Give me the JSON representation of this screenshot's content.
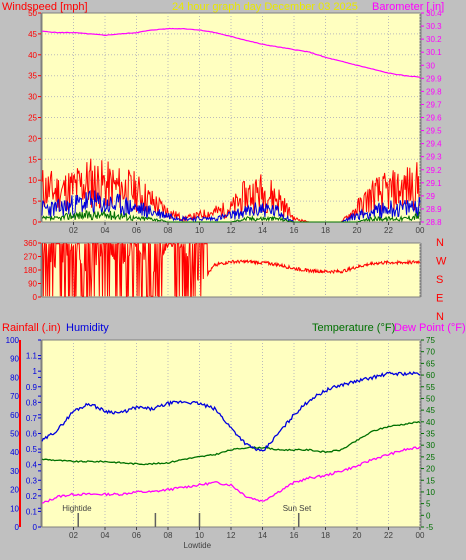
{
  "header": {
    "windspeed_label": "Windspeed [mph]",
    "title": "24 hour graph day   December 03 2025",
    "barometer_label": "Barometer [.in]"
  },
  "colors": {
    "background": "#c0c0c0",
    "plot_bg": "#ffffc0",
    "red": "#ff0000",
    "blue": "#0000dd",
    "green": "#007000",
    "magenta": "#ff00ff",
    "yellow_text": "#e8e800"
  },
  "x_tick_labels": [
    "02",
    "04",
    "06",
    "08",
    "10",
    "12",
    "14",
    "16",
    "18",
    "20",
    "22",
    "00"
  ],
  "chart_data": [
    {
      "type": "line",
      "panel": "wind-barometer",
      "x_unit": "hour",
      "xlim": [
        0,
        24
      ],
      "y_left": {
        "label": "Windspeed [mph]",
        "ylim": [
          0,
          50
        ],
        "ticks": [
          0,
          5,
          10,
          15,
          20,
          25,
          30,
          35,
          40,
          45,
          50
        ]
      },
      "y_right": {
        "label": "Barometer [.in]",
        "ylim": [
          28.8,
          30.4
        ],
        "ticks": [
          28.8,
          28.9,
          29.0,
          29.1,
          29.2,
          29.3,
          29.4,
          29.5,
          29.6,
          29.7,
          29.8,
          29.9,
          30.0,
          30.1,
          30.2,
          30.3,
          30.4
        ]
      },
      "series": [
        {
          "name": "Barometer",
          "axis": "right",
          "color": "#ff00ff",
          "x": [
            0,
            1,
            2,
            3,
            4,
            5,
            6,
            7,
            8,
            9,
            10,
            11,
            12,
            13,
            14,
            15,
            16,
            17,
            18,
            19,
            20,
            21,
            22,
            23,
            24
          ],
          "y": [
            30.26,
            30.25,
            30.25,
            30.24,
            30.23,
            30.24,
            30.25,
            30.27,
            30.28,
            30.28,
            30.27,
            30.25,
            30.22,
            30.19,
            30.16,
            30.14,
            30.12,
            30.1,
            30.06,
            30.03,
            30.0,
            29.97,
            29.94,
            29.92,
            29.91
          ]
        },
        {
          "name": "Wind gust",
          "axis": "left",
          "color": "#ff0000",
          "x": [
            0,
            1,
            2,
            3,
            4,
            5,
            6,
            7,
            8,
            9,
            10,
            11,
            12,
            13,
            14,
            15,
            16,
            17,
            18,
            19,
            20,
            21,
            22,
            23,
            24
          ],
          "y": [
            10,
            9,
            10,
            12,
            11,
            10,
            9,
            6,
            3,
            1,
            2,
            3,
            4,
            8,
            9,
            7,
            1,
            0,
            0,
            0,
            4,
            8,
            9,
            10,
            11
          ]
        },
        {
          "name": "Wind average",
          "axis": "left",
          "color": "#0000dd",
          "x": [
            0,
            1,
            2,
            3,
            4,
            5,
            6,
            7,
            8,
            9,
            10,
            11,
            12,
            13,
            14,
            15,
            16,
            17,
            18,
            19,
            20,
            21,
            22,
            23,
            24
          ],
          "y": [
            4,
            4,
            5,
            6,
            5,
            5,
            4,
            3,
            2,
            1,
            1,
            1,
            2,
            3,
            4,
            3,
            0,
            0,
            0,
            0,
            2,
            3,
            4,
            4,
            5
          ]
        },
        {
          "name": "Wind min",
          "axis": "left",
          "color": "#007000",
          "x": [
            0,
            1,
            2,
            3,
            4,
            5,
            6,
            7,
            8,
            9,
            10,
            11,
            12,
            13,
            14,
            15,
            16,
            17,
            18,
            19,
            20,
            21,
            22,
            23,
            24
          ],
          "y": [
            1,
            1,
            2,
            2,
            2,
            2,
            1,
            1,
            0,
            0,
            0,
            0,
            0,
            1,
            1,
            1,
            0,
            0,
            0,
            0,
            0,
            1,
            1,
            1,
            2
          ]
        }
      ]
    },
    {
      "type": "line",
      "panel": "wind-direction",
      "x_unit": "hour",
      "xlim": [
        0,
        24
      ],
      "y_left": {
        "ylim": [
          0,
          360
        ],
        "ticks": [
          0,
          90,
          180,
          270,
          360
        ]
      },
      "y_right_labels": [
        "N",
        "W",
        "S",
        "E",
        "N"
      ],
      "series": [
        {
          "name": "Wind direction",
          "color": "#ff0000",
          "x": [
            0,
            1,
            2,
            3,
            4,
            5,
            6,
            7,
            8,
            9,
            10,
            11,
            12,
            13,
            14,
            15,
            16,
            17,
            18,
            19,
            20,
            21,
            22,
            23,
            24
          ],
          "y": [
            300,
            180,
            340,
            120,
            330,
            200,
            340,
            150,
            340,
            330,
            90,
            215,
            235,
            235,
            230,
            215,
            190,
            175,
            170,
            170,
            200,
            225,
            230,
            230,
            235
          ]
        }
      ]
    },
    {
      "type": "line",
      "panel": "rain-humidity-temperature",
      "x_unit": "hour",
      "xlim": [
        0,
        24
      ],
      "y_left_rain": {
        "label": "Rainfall (.in)",
        "ylim": [
          0,
          1.2
        ],
        "ticks": [
          0,
          0.1,
          0.2,
          0.3,
          0.4,
          0.5,
          0.6,
          0.7,
          0.8,
          0.9,
          1,
          1.1
        ]
      },
      "y_left_humidity": {
        "label": "Humidity",
        "ylim": [
          0,
          100
        ],
        "ticks": [
          0,
          10,
          20,
          30,
          40,
          50,
          60,
          70,
          80,
          90,
          100
        ]
      },
      "y_right": {
        "label": "Temperature (°F)",
        "label2": "Dew Point (°F)",
        "ylim": [
          -5,
          75
        ],
        "ticks": [
          -5,
          0,
          5,
          10,
          15,
          20,
          25,
          30,
          35,
          40,
          45,
          50,
          55,
          60,
          65,
          70,
          75
        ]
      },
      "series": [
        {
          "name": "Humidity",
          "axis": "humidity",
          "color": "#0000dd",
          "x": [
            0,
            1,
            2,
            3,
            4,
            5,
            6,
            7,
            8,
            9,
            10,
            11,
            12,
            13,
            14,
            15,
            16,
            17,
            18,
            19,
            20,
            21,
            22,
            23,
            24
          ],
          "y": [
            46,
            52,
            62,
            66,
            62,
            61,
            64,
            63,
            66,
            67,
            66,
            63,
            53,
            44,
            40,
            50,
            60,
            68,
            73,
            76,
            78,
            80,
            82,
            82,
            82
          ]
        },
        {
          "name": "Temperature",
          "axis": "right",
          "color": "#007000",
          "x": [
            0,
            1,
            2,
            3,
            4,
            5,
            6,
            7,
            8,
            9,
            10,
            11,
            12,
            13,
            14,
            15,
            16,
            17,
            18,
            19,
            20,
            21,
            22,
            23,
            24
          ],
          "y": [
            24,
            23.5,
            23,
            23,
            23,
            22.5,
            22,
            22,
            22.5,
            24,
            25,
            26,
            28,
            29,
            29,
            28,
            28,
            28,
            27,
            28,
            32,
            36,
            38,
            39,
            40
          ]
        },
        {
          "name": "Dew Point",
          "axis": "right",
          "color": "#ff00ff",
          "x": [
            0,
            1,
            2,
            3,
            4,
            5,
            6,
            7,
            8,
            9,
            10,
            11,
            12,
            13,
            14,
            15,
            16,
            17,
            18,
            19,
            20,
            21,
            22,
            23,
            24
          ],
          "y": [
            5,
            8,
            9,
            9,
            9,
            9,
            10,
            10,
            11,
            12,
            13,
            14,
            13,
            8,
            6,
            10,
            14,
            16,
            17,
            19,
            21,
            24,
            26,
            28,
            29
          ]
        }
      ],
      "events": [
        {
          "label": "Hightide",
          "x": 2.3
        },
        {
          "label": "",
          "x": 7.2
        },
        {
          "label": "Lowtide",
          "x": 10
        },
        {
          "label": "Sun Set",
          "x": 16.3
        }
      ]
    }
  ]
}
